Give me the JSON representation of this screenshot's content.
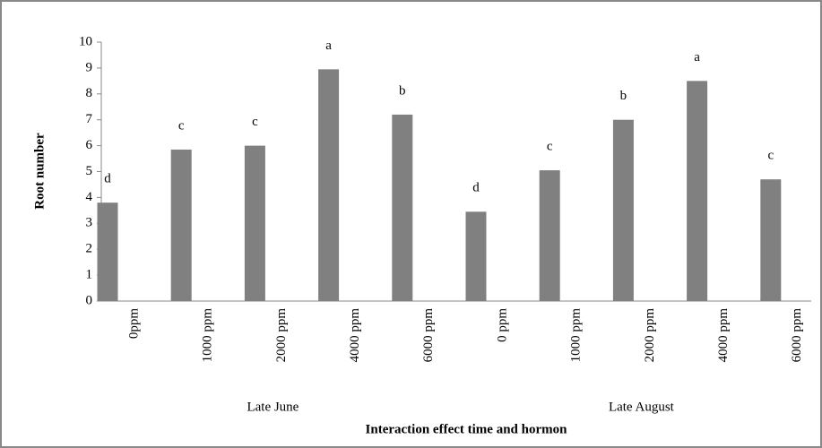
{
  "chart_data": {
    "type": "bar",
    "categories": [
      "0ppm",
      "1000 ppm",
      "2000 ppm",
      "4000 ppm",
      "6000 ppm",
      "0 ppm",
      "1000 ppm",
      "2000 ppm",
      "4000 ppm",
      "6000 ppm"
    ],
    "values": [
      3.8,
      5.85,
      6.0,
      8.95,
      7.2,
      3.45,
      5.05,
      7.0,
      8.5,
      4.7
    ],
    "annotations": [
      "d",
      "c",
      "c",
      "a",
      "b",
      "d",
      "c",
      "b",
      "a",
      "c"
    ],
    "group_labels": [
      "Late June",
      "Late August"
    ],
    "color": "#808080",
    "ylim": [
      0,
      10
    ],
    "yticks": [
      0,
      1,
      2,
      3,
      4,
      5,
      6,
      7,
      8,
      9,
      10
    ],
    "ylabel": "Root number",
    "xlabel": "Interaction effect time and hormon",
    "grid": false
  }
}
